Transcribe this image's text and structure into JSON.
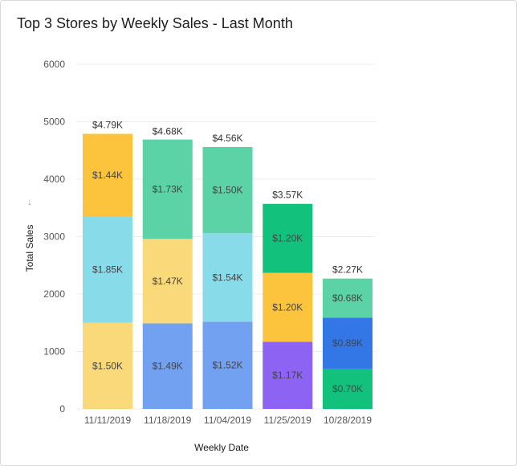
{
  "title": "Top 3 Stores by Weekly Sales - Last Month",
  "icons": {
    "sort": "arrow-down-icon"
  },
  "chart_data": {
    "type": "bar",
    "stacked": true,
    "xlabel": "Weekly Date",
    "ylabel": "Total Sales",
    "ylim": [
      0,
      6000
    ],
    "yticks": [
      0,
      1000,
      2000,
      3000,
      4000,
      5000,
      6000
    ],
    "grid": true,
    "legend": "none",
    "categories": [
      "11/11/2019",
      "11/18/2019",
      "11/04/2019",
      "11/25/2019",
      "10/28/2019"
    ],
    "bars": [
      {
        "total": 4790,
        "total_label": "$4.79K",
        "segments": [
          {
            "value": 1500,
            "label": "$1.50K",
            "color": "#fad97a"
          },
          {
            "value": 1850,
            "label": "$1.85K",
            "color": "#88dcea"
          },
          {
            "value": 1440,
            "label": "$1.44K",
            "color": "#fcc43d"
          }
        ]
      },
      {
        "total": 4680,
        "total_label": "$4.68K",
        "segments": [
          {
            "value": 1490,
            "label": "$1.49K",
            "color": "#72a1f2"
          },
          {
            "value": 1470,
            "label": "$1.47K",
            "color": "#fad97a"
          },
          {
            "value": 1730,
            "label": "$1.73K",
            "color": "#5bd3a6"
          }
        ]
      },
      {
        "total": 4560,
        "total_label": "$4.56K",
        "segments": [
          {
            "value": 1520,
            "label": "$1.52K",
            "color": "#72a1f2"
          },
          {
            "value": 1540,
            "label": "$1.54K",
            "color": "#88dcea"
          },
          {
            "value": 1500,
            "label": "$1.50K",
            "color": "#5bd3a6"
          }
        ]
      },
      {
        "total": 3570,
        "total_label": "$3.57K",
        "segments": [
          {
            "value": 1170,
            "label": "$1.17K",
            "color": "#8c63f2"
          },
          {
            "value": 1200,
            "label": "$1.20K",
            "color": "#fcc43d"
          },
          {
            "value": 1200,
            "label": "$1.20K",
            "color": "#12c17b"
          }
        ]
      },
      {
        "total": 2270,
        "total_label": "$2.27K",
        "segments": [
          {
            "value": 700,
            "label": "$0.70K",
            "color": "#12c17b"
          },
          {
            "value": 890,
            "label": "$0.89K",
            "color": "#3377e6"
          },
          {
            "value": 680,
            "label": "$0.68K",
            "color": "#5bd3a6"
          }
        ]
      }
    ]
  }
}
